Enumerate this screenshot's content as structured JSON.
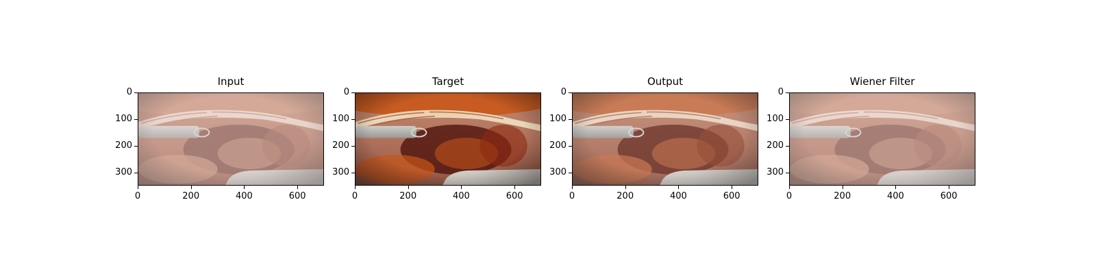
{
  "panels": [
    {
      "title": "Input",
      "variant": "hazy"
    },
    {
      "title": "Target",
      "variant": "clear"
    },
    {
      "title": "Output",
      "variant": "restored"
    },
    {
      "title": "Wiener Filter",
      "variant": "hazy"
    }
  ],
  "axes": {
    "x_ticks": [
      0,
      200,
      400,
      600
    ],
    "x_range": [
      0,
      700
    ],
    "y_ticks": [
      0,
      100,
      200,
      300
    ],
    "y_range": [
      0,
      350
    ]
  }
}
